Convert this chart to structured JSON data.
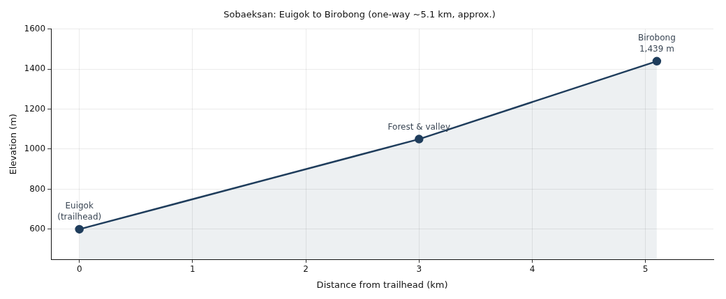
{
  "chart_data": {
    "type": "area",
    "title": "Sobaeksan: Euigok to Birobong (one-way ~5.1 km, approx.)",
    "xlabel": "Distance from trailhead (km)",
    "ylabel": "Elevation (m)",
    "x": [
      0,
      3,
      5.1
    ],
    "series": [
      {
        "color": "#1f3d5c",
        "values": [
          600,
          1050,
          1439
        ]
      }
    ],
    "xlim": [
      -0.25,
      5.6
    ],
    "ylim": [
      450,
      1600
    ],
    "xticks": [
      0,
      1,
      2,
      3,
      4,
      5
    ],
    "yticks": [
      600,
      800,
      1000,
      1200,
      1400,
      1600
    ],
    "grid": true,
    "marker": "circle",
    "line_style": "solid",
    "annotations": [
      {
        "text": "Euigok\n(trailhead)",
        "x": 0,
        "y": 600
      },
      {
        "text": "Forest & valley",
        "x": 3,
        "y": 1050
      },
      {
        "text": "Birobong\n1,439 m",
        "x": 5.1,
        "y": 1439
      }
    ]
  }
}
